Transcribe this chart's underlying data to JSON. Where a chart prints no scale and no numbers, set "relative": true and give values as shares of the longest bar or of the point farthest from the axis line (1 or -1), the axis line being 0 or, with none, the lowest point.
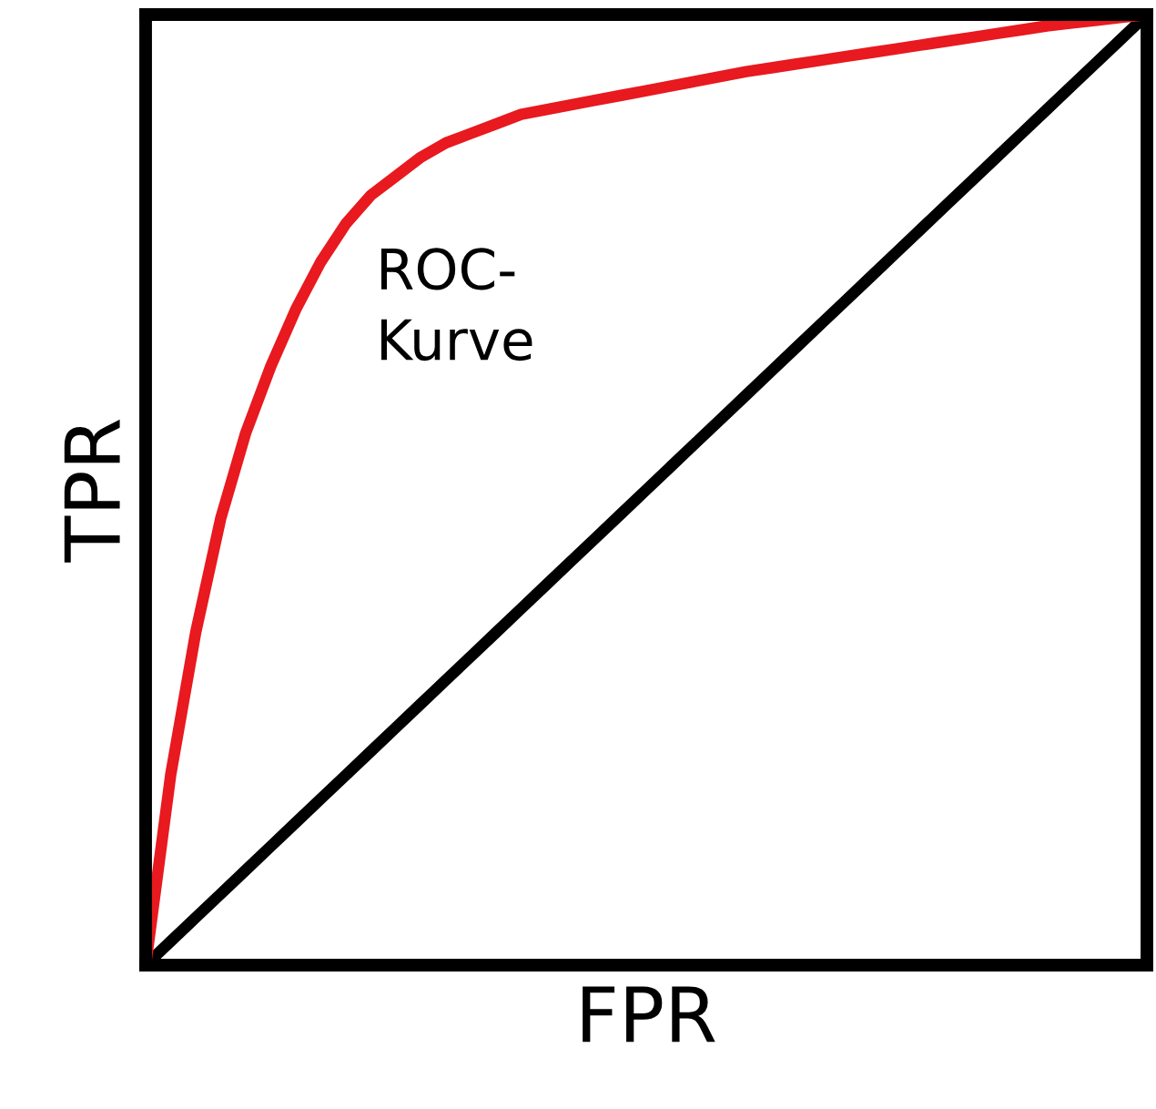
{
  "chart_data": {
    "type": "line",
    "relative": true,
    "xlabel": "FPR",
    "ylabel": "TPR",
    "annotations": [
      "ROC-\nKurve"
    ],
    "categories": [
      null,
      null,
      null,
      null,
      null,
      null,
      null,
      null,
      null,
      null,
      null,
      null,
      null,
      null,
      null,
      null,
      null,
      null,
      null,
      null,
      null,
      null,
      null,
      null,
      null,
      null,
      null,
      null,
      null,
      null,
      null,
      null,
      null,
      null,
      null,
      null,
      null,
      null,
      null,
      null,
      null
    ],
    "series": [
      {
        "color": "#000000",
        "values": [
          0,
          0.025,
          0.05,
          0.075,
          0.1,
          0.125,
          0.15,
          0.175,
          0.2,
          0.225,
          0.25,
          0.275,
          0.3,
          0.325,
          0.35,
          0.375,
          0.4,
          0.425,
          0.45,
          0.475,
          0.5,
          0.525,
          0.55,
          0.575,
          0.6,
          0.625,
          0.65,
          0.675,
          0.7,
          0.725,
          0.75,
          0.775,
          0.8,
          0.825,
          0.85,
          0.875,
          0.9,
          0.925,
          0.95,
          0.975,
          1
        ]
      },
      {
        "color": "#e8191f",
        "values": [
          0,
          0.2,
          0.35,
          0.47,
          0.56,
          0.63,
          0.69,
          0.74,
          0.78,
          0.81,
          0.83,
          0.85,
          0.865,
          0.875,
          0.885,
          0.895,
          0.9,
          0.905,
          0.91,
          0.915,
          0.92,
          0.925,
          0.93,
          0.935,
          0.94,
          0.944,
          0.948,
          0.952,
          0.956,
          0.96,
          0.964,
          0.968,
          0.972,
          0.976,
          0.98,
          0.984,
          0.988,
          0.991,
          0.994,
          0.997,
          1
        ]
      }
    ]
  }
}
